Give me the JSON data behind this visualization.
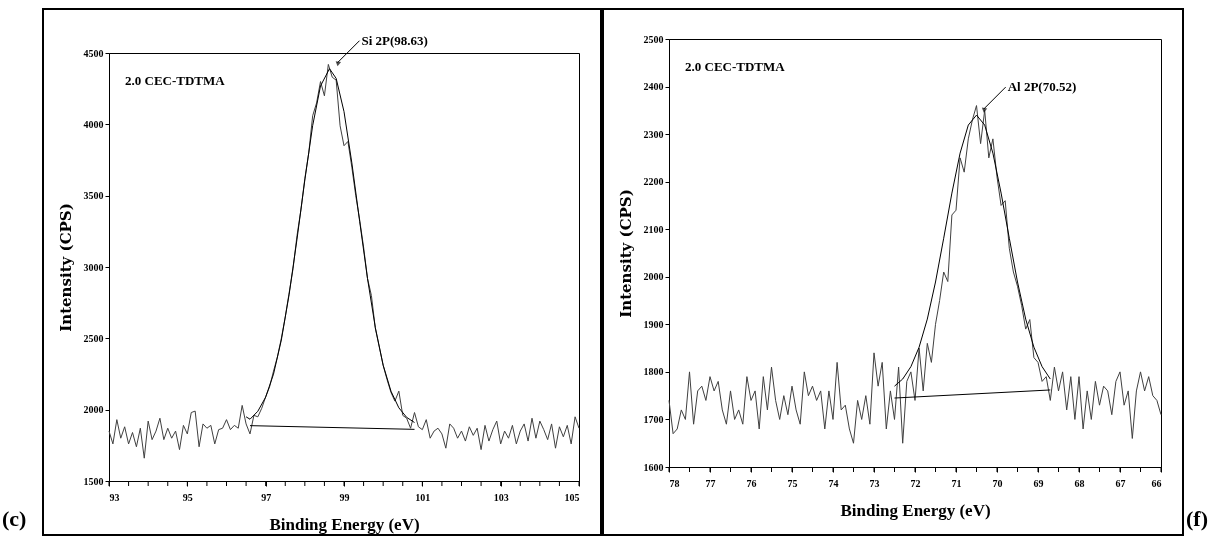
{
  "chart_data": [
    {
      "type": "line",
      "xlabel": "Binding Energy (eV)",
      "ylabel": "Intensity (CPS)",
      "xlim": [
        93,
        105
      ],
      "xticks": [
        93,
        {
          "value": 93.5,
          "label": null
        },
        {
          "value": 94,
          "label": null
        },
        {
          "value": 94.5,
          "label": null
        },
        95,
        {
          "value": 95.5,
          "label": null
        },
        {
          "value": 96,
          "label": null
        },
        {
          "value": 96.5,
          "label": null
        },
        97,
        {
          "value": 97.5,
          "label": null
        },
        {
          "value": 98,
          "label": null
        },
        {
          "value": 98.5,
          "label": null
        },
        99,
        {
          "value": 99.5,
          "label": null
        },
        {
          "value": 100,
          "label": null
        },
        {
          "value": 100.5,
          "label": null
        },
        101,
        {
          "value": 101.5,
          "label": null
        },
        {
          "value": 102,
          "label": null
        },
        {
          "value": 102.5,
          "label": null
        },
        103,
        {
          "value": 103.5,
          "label": null
        },
        {
          "value": 104,
          "label": null
        },
        {
          "value": 104.5,
          "label": null
        },
        105
      ],
      "ylim": [
        1500,
        4500
      ],
      "yticks": [
        1500,
        2000,
        2500,
        3000,
        3500,
        4000,
        4500
      ],
      "grid": false,
      "marker": "none",
      "line_style": "solid",
      "annotations": [
        "2.0 CEC-TDTMA",
        {
          "text": "Si 2P(98.63)",
          "x": 98.63,
          "y": 4390
        },
        "(c)"
      ],
      "series": [
        {
          "color": "#404040",
          "x": [
            93.0,
            93.1,
            93.2,
            93.3,
            93.4,
            93.5,
            93.6,
            93.7,
            93.8,
            93.9,
            94.0,
            94.1,
            94.2,
            94.3,
            94.4,
            94.5,
            94.6,
            94.7,
            94.8,
            94.9,
            95.0,
            95.1,
            95.2,
            95.3,
            95.4,
            95.5,
            95.6,
            95.7,
            95.8,
            95.9,
            96.0,
            96.1,
            96.2,
            96.3,
            96.4,
            96.5,
            96.6,
            96.7,
            96.8,
            96.9,
            97.0,
            97.1,
            97.2,
            97.3,
            97.4,
            97.5,
            97.6,
            97.7,
            97.8,
            97.9,
            98.0,
            98.1,
            98.2,
            98.3,
            98.4,
            98.5,
            98.6,
            98.7,
            98.8,
            98.9,
            99.0,
            99.1,
            99.2,
            99.3,
            99.4,
            99.5,
            99.6,
            99.7,
            99.8,
            99.9,
            100.0,
            100.1,
            100.2,
            100.3,
            100.4,
            100.5,
            100.6,
            100.7,
            100.8,
            100.9,
            101.0,
            101.1,
            101.2,
            101.3,
            101.4,
            101.5,
            101.6,
            101.7,
            101.8,
            101.9,
            102.0,
            102.1,
            102.2,
            102.3,
            102.4,
            102.5,
            102.6,
            102.7,
            102.8,
            102.9,
            103.0,
            103.1,
            103.2,
            103.3,
            103.4,
            103.5,
            103.6,
            103.7,
            103.8,
            103.9,
            104.0,
            104.1,
            104.2,
            104.3,
            104.4,
            104.5,
            104.6,
            104.7,
            104.8,
            104.9,
            105.0
          ],
          "values": [
            1850,
            1760,
            1930,
            1800,
            1880,
            1760,
            1840,
            1740,
            1870,
            1660,
            1920,
            1790,
            1850,
            1940,
            1790,
            1870,
            1800,
            1850,
            1720,
            1890,
            1830,
            1980,
            1990,
            1740,
            1900,
            1870,
            1890,
            1760,
            1860,
            1870,
            1930,
            1860,
            1890,
            1870,
            2030,
            1900,
            1830,
            1960,
            1950,
            2010,
            2090,
            2160,
            2270,
            2370,
            2500,
            2650,
            2820,
            2990,
            3220,
            3400,
            3620,
            3800,
            4060,
            4150,
            4300,
            4200,
            4420,
            4330,
            4310,
            3990,
            3850,
            3880,
            3700,
            3500,
            3330,
            3140,
            2920,
            2800,
            2570,
            2440,
            2310,
            2210,
            2120,
            2060,
            2130,
            1960,
            1940,
            1870,
            1980,
            1880,
            1860,
            1930,
            1800,
            1850,
            1870,
            1830,
            1730,
            1900,
            1870,
            1800,
            1850,
            1780,
            1880,
            1820,
            1870,
            1720,
            1890,
            1780,
            1860,
            1920,
            1760,
            1850,
            1800,
            1890,
            1760,
            1850,
            1900,
            1780,
            1940,
            1800,
            1920,
            1860,
            1790,
            1900,
            1730,
            1880,
            1810,
            1890,
            1760,
            1950,
            1870
          ]
        },
        {
          "color": "#000000",
          "x": [
            96.5,
            96.6,
            96.8,
            97.0,
            97.2,
            97.4,
            97.6,
            97.8,
            98.0,
            98.2,
            98.4,
            98.63,
            98.8,
            99.0,
            99.2,
            99.4,
            99.6,
            99.8,
            100.0,
            100.2,
            100.4,
            100.6,
            100.8
          ],
          "values": [
            1950,
            1933,
            1989,
            2088,
            2249,
            2488,
            2809,
            3195,
            3610,
            3991,
            4269,
            4390,
            4322,
            4089,
            3730,
            3320,
            2919,
            2575,
            2312,
            2129,
            2013,
            1946,
            1910
          ]
        },
        {
          "color": "#000000",
          "x": [
            96.6,
            100.8
          ],
          "values": [
            1888,
            1862
          ]
        }
      ]
    },
    {
      "type": "line",
      "xlabel": "Binding Energy (eV)",
      "ylabel": "Intensity (CPS)",
      "xlim": [
        78,
        66
      ],
      "xticks": [
        78,
        {
          "value": 77.5,
          "label": null
        },
        77,
        {
          "value": 76.5,
          "label": null
        },
        76,
        {
          "value": 75.5,
          "label": null
        },
        75,
        {
          "value": 74.5,
          "label": null
        },
        74,
        {
          "value": 73.5,
          "label": null
        },
        73,
        {
          "value": 72.5,
          "label": null
        },
        72,
        {
          "value": 71.5,
          "label": null
        },
        71,
        {
          "value": 70.5,
          "label": null
        },
        70,
        {
          "value": 69.5,
          "label": null
        },
        69,
        {
          "value": 68.5,
          "label": null
        },
        68,
        {
          "value": 67.5,
          "label": null
        },
        67,
        {
          "value": 66.5,
          "label": null
        },
        66
      ],
      "ylim": [
        1600,
        2500
      ],
      "yticks": [
        1600,
        1700,
        1800,
        1900,
        2000,
        2100,
        2200,
        2300,
        2400,
        2500
      ],
      "grid": false,
      "marker": "none",
      "line_style": "solid",
      "annotations": [
        "2.0 CEC-TDTMA",
        {
          "text": "Al 2P(70.52)",
          "x": 70.52,
          "y": 2340
        },
        "(f)"
      ],
      "series": [
        {
          "color": "#404040",
          "x": [
            78.0,
            77.9,
            77.8,
            77.7,
            77.6,
            77.5,
            77.4,
            77.3,
            77.2,
            77.1,
            77.0,
            76.9,
            76.8,
            76.7,
            76.6,
            76.5,
            76.4,
            76.3,
            76.2,
            76.1,
            76.0,
            75.9,
            75.8,
            75.7,
            75.6,
            75.5,
            75.4,
            75.3,
            75.2,
            75.1,
            75.0,
            74.9,
            74.8,
            74.7,
            74.6,
            74.5,
            74.4,
            74.3,
            74.2,
            74.1,
            74.0,
            73.9,
            73.8,
            73.7,
            73.6,
            73.5,
            73.4,
            73.3,
            73.2,
            73.1,
            73.0,
            72.9,
            72.8,
            72.7,
            72.6,
            72.5,
            72.4,
            72.3,
            72.2,
            72.1,
            72.0,
            71.9,
            71.8,
            71.7,
            71.6,
            71.5,
            71.4,
            71.3,
            71.2,
            71.1,
            71.0,
            70.9,
            70.8,
            70.7,
            70.6,
            70.5,
            70.4,
            70.3,
            70.2,
            70.1,
            70.0,
            69.9,
            69.8,
            69.7,
            69.6,
            69.5,
            69.4,
            69.3,
            69.2,
            69.1,
            69.0,
            68.9,
            68.8,
            68.7,
            68.6,
            68.5,
            68.4,
            68.3,
            68.2,
            68.1,
            68.0,
            67.9,
            67.8,
            67.7,
            67.6,
            67.5,
            67.4,
            67.3,
            67.2,
            67.1,
            67.0,
            66.9,
            66.8,
            66.7,
            66.6,
            66.5,
            66.4,
            66.3,
            66.2,
            66.1,
            66.0
          ],
          "values": [
            1740,
            1670,
            1680,
            1720,
            1700,
            1800,
            1690,
            1760,
            1770,
            1740,
            1790,
            1760,
            1780,
            1720,
            1690,
            1760,
            1700,
            1720,
            1690,
            1790,
            1740,
            1760,
            1680,
            1790,
            1720,
            1810,
            1740,
            1700,
            1750,
            1710,
            1770,
            1720,
            1690,
            1800,
            1750,
            1770,
            1740,
            1760,
            1680,
            1760,
            1700,
            1820,
            1720,
            1730,
            1680,
            1650,
            1740,
            1700,
            1750,
            1690,
            1840,
            1770,
            1820,
            1680,
            1760,
            1700,
            1810,
            1650,
            1780,
            1800,
            1740,
            1850,
            1760,
            1860,
            1820,
            1900,
            1950,
            2010,
            1990,
            2130,
            2140,
            2250,
            2220,
            2290,
            2330,
            2360,
            2280,
            2350,
            2250,
            2290,
            2210,
            2150,
            2160,
            2060,
            2010,
            1980,
            1940,
            1890,
            1910,
            1830,
            1820,
            1780,
            1790,
            1740,
            1810,
            1760,
            1800,
            1720,
            1790,
            1700,
            1790,
            1680,
            1760,
            1700,
            1780,
            1730,
            1770,
            1760,
            1710,
            1780,
            1800,
            1730,
            1760,
            1660,
            1760,
            1800,
            1760,
            1790,
            1750,
            1740,
            1710
          ]
        },
        {
          "color": "#000000",
          "x": [
            72.5,
            72.3,
            72.1,
            71.9,
            71.7,
            71.5,
            71.3,
            71.1,
            70.9,
            70.7,
            70.5,
            70.3,
            70.1,
            69.9,
            69.7,
            69.5,
            69.3,
            69.1,
            68.9,
            68.7
          ],
          "values": [
            1770,
            1785,
            1811,
            1852,
            1911,
            1989,
            2081,
            2176,
            2260,
            2319,
            2340,
            2319,
            2260,
            2176,
            2081,
            1989,
            1911,
            1852,
            1811,
            1785
          ]
        },
        {
          "color": "#000000",
          "x": [
            72.5,
            68.7
          ],
          "values": [
            1745,
            1762
          ]
        }
      ]
    }
  ]
}
